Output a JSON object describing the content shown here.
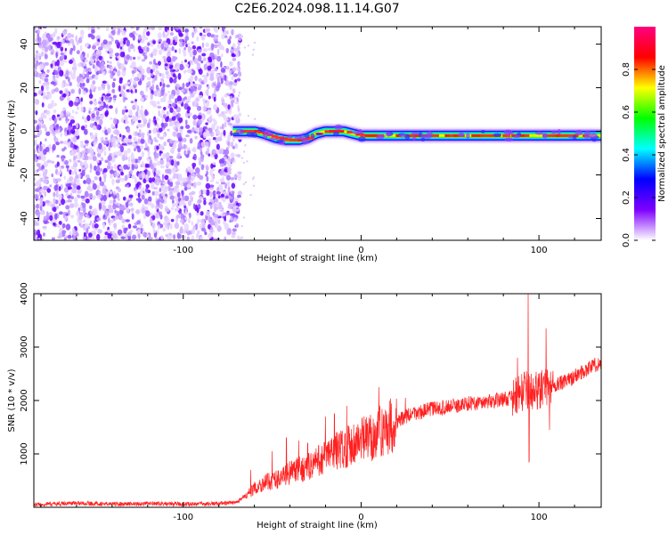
{
  "title": "C2E6.2024.098.11.14.G07",
  "chart_data": [
    {
      "type": "heatmap",
      "xlabel": "Height of straight line (km)",
      "ylabel": "Frequency (Hz)",
      "xlim": [
        -184,
        135
      ],
      "ylim": [
        -50,
        48
      ],
      "x_ticks": [
        -100,
        0,
        100
      ],
      "y_ticks": [
        -40,
        -20,
        0,
        20,
        40
      ],
      "colorbar": {
        "label": "Normalized spectral amplitude",
        "ticks": [
          0.0,
          0.2,
          0.4,
          0.6,
          0.8
        ],
        "range": [
          0,
          1
        ],
        "colormap": [
          "#ffffff",
          "#7f00ff",
          "#0000ff",
          "#00ffff",
          "#00ff00",
          "#ffff00",
          "#ff0000",
          "#ff0080"
        ]
      },
      "noise_region_x": [
        -184,
        -72
      ],
      "ridge": {
        "x_start": -72,
        "x_end": 135,
        "freq_hz": [
          [
            -72,
            0
          ],
          [
            -65,
            0
          ],
          [
            -60,
            0
          ],
          [
            -55,
            -1
          ],
          [
            -48,
            -3
          ],
          [
            -42,
            -4
          ],
          [
            -38,
            -4
          ],
          [
            -35,
            -4
          ],
          [
            -30,
            -3
          ],
          [
            -25,
            -1
          ],
          [
            -20,
            0
          ],
          [
            -15,
            0
          ],
          [
            -10,
            0
          ],
          [
            -5,
            -1
          ],
          [
            0,
            -2
          ],
          [
            10,
            -2
          ],
          [
            20,
            -2
          ],
          [
            40,
            -2
          ],
          [
            60,
            -2
          ],
          [
            80,
            -2
          ],
          [
            90,
            -2
          ],
          [
            100,
            -2
          ],
          [
            110,
            -2
          ],
          [
            120,
            -2
          ],
          [
            135,
            -2
          ]
        ]
      }
    },
    {
      "type": "line",
      "xlabel": "Height of straight line (km)",
      "ylabel": "SNR (10 * v/v)",
      "xlim": [
        -184,
        135
      ],
      "ylim": [
        0,
        4000
      ],
      "x_ticks": [
        -100,
        0,
        100
      ],
      "y_ticks": [
        1000,
        2000,
        3000,
        4000
      ],
      "color": "#ff2020",
      "points": [
        [
          -184,
          50
        ],
        [
          -160,
          80
        ],
        [
          -140,
          60
        ],
        [
          -120,
          70
        ],
        [
          -100,
          60
        ],
        [
          -80,
          70
        ],
        [
          -72,
          80
        ],
        [
          -65,
          200
        ],
        [
          -60,
          350
        ],
        [
          -55,
          450
        ],
        [
          -50,
          500
        ],
        [
          -45,
          550
        ],
        [
          -40,
          650
        ],
        [
          -35,
          700
        ],
        [
          -30,
          750
        ],
        [
          -25,
          850
        ],
        [
          -20,
          950
        ],
        [
          -15,
          1050
        ],
        [
          -10,
          1100
        ],
        [
          -5,
          1200
        ],
        [
          0,
          1250
        ],
        [
          5,
          1300
        ],
        [
          10,
          1400
        ],
        [
          15,
          1500
        ],
        [
          20,
          1600
        ],
        [
          25,
          1700
        ],
        [
          30,
          1750
        ],
        [
          35,
          1800
        ],
        [
          40,
          1850
        ],
        [
          45,
          1850
        ],
        [
          50,
          1900
        ],
        [
          55,
          1900
        ],
        [
          60,
          1950
        ],
        [
          65,
          1950
        ],
        [
          70,
          1975
        ],
        [
          75,
          2000
        ],
        [
          80,
          2025
        ],
        [
          85,
          2050
        ],
        [
          88,
          2100
        ],
        [
          90,
          2150
        ],
        [
          93,
          2200
        ],
        [
          96,
          2150
        ],
        [
          100,
          2200
        ],
        [
          105,
          2250
        ],
        [
          110,
          2300
        ],
        [
          115,
          2350
        ],
        [
          120,
          2450
        ],
        [
          125,
          2550
        ],
        [
          130,
          2650
        ],
        [
          135,
          2700
        ]
      ],
      "spikes": [
        [
          -62,
          700
        ],
        [
          -50,
          1050
        ],
        [
          -42,
          1300
        ],
        [
          -35,
          1250
        ],
        [
          -30,
          1200
        ],
        [
          -20,
          1700
        ],
        [
          -15,
          1750
        ],
        [
          -8,
          1900
        ],
        [
          10,
          2250
        ],
        [
          25,
          2050
        ],
        [
          88,
          2800
        ],
        [
          94,
          4000
        ],
        [
          94.5,
          850
        ],
        [
          96,
          1900
        ],
        [
          104,
          3350
        ],
        [
          106,
          1450
        ]
      ]
    }
  ]
}
